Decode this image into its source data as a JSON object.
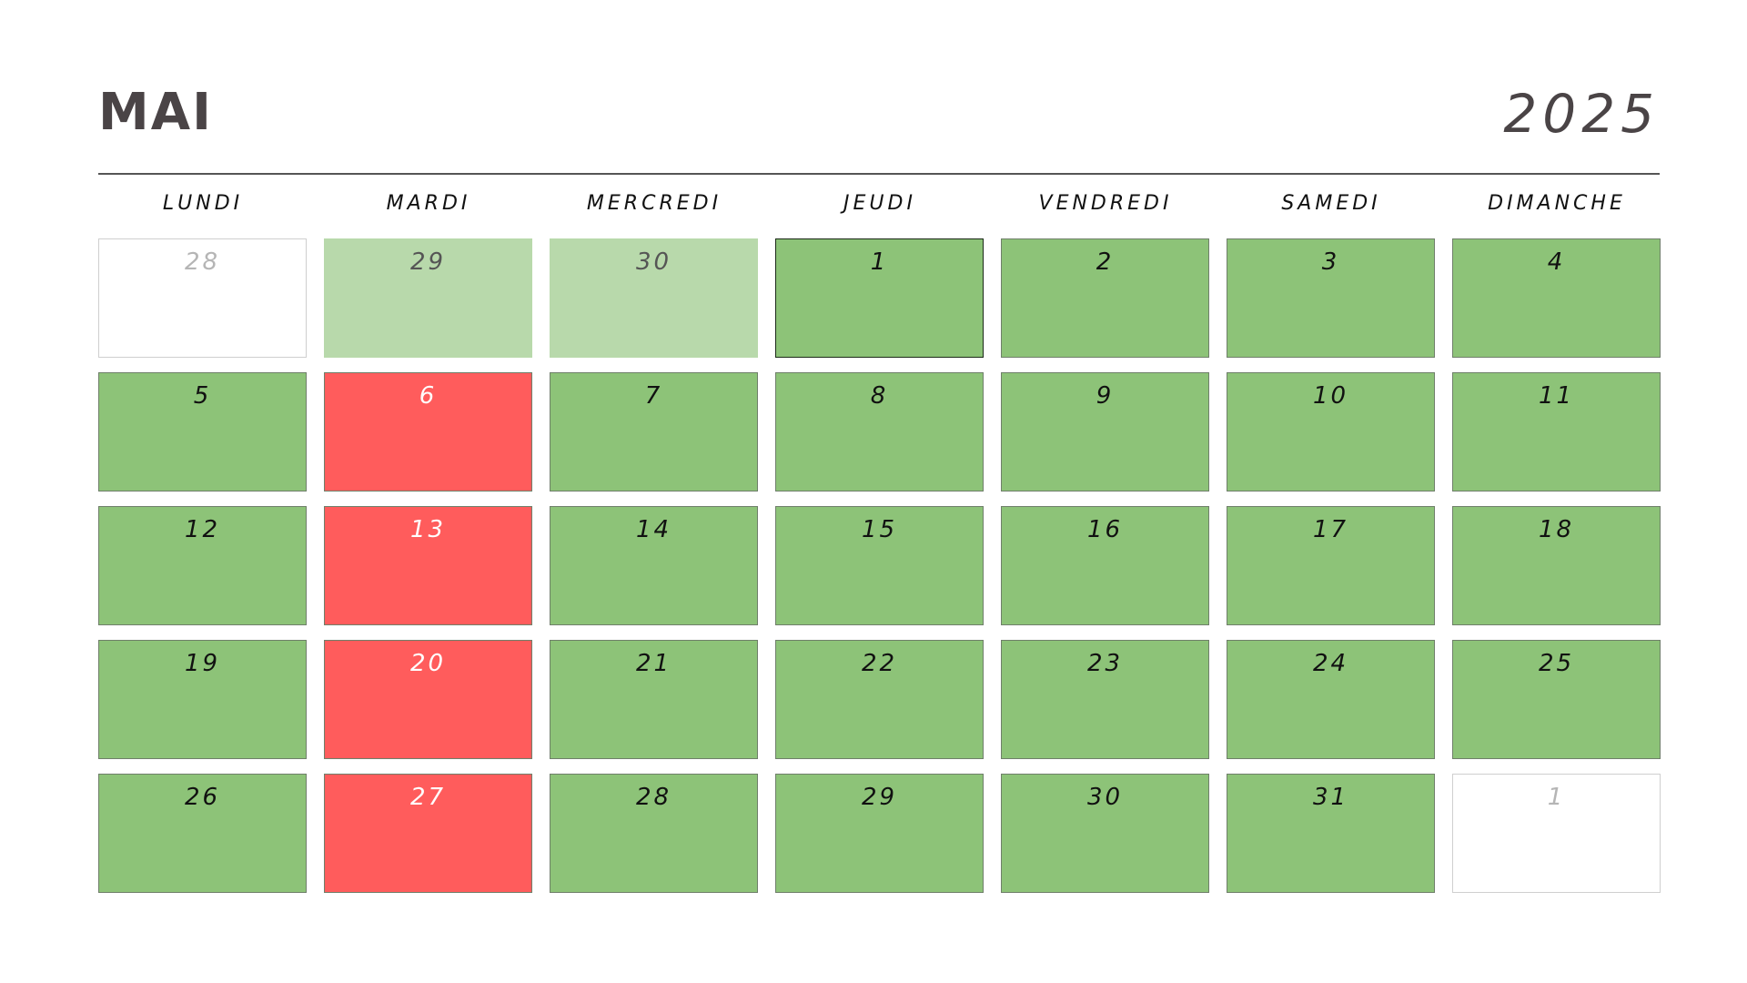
{
  "header": {
    "month": "MAI",
    "year": "2025"
  },
  "weekdays": [
    "LUNDI",
    "MARDI",
    "MERCREDI",
    "JEUDI",
    "VENDREDI",
    "SAMEDI",
    "DIMANCHE"
  ],
  "colors": {
    "green": "#8dc378",
    "light_green": "#b8d9ab",
    "red": "#ff5c5c",
    "empty": "#ffffff",
    "text_dark": "#4a4446"
  },
  "weeks": [
    [
      {
        "day": "28",
        "state": "empty"
      },
      {
        "day": "29",
        "state": "lightgreen"
      },
      {
        "day": "30",
        "state": "lightgreen"
      },
      {
        "day": "1",
        "state": "green",
        "outlined": true
      },
      {
        "day": "2",
        "state": "green"
      },
      {
        "day": "3",
        "state": "green"
      },
      {
        "day": "4",
        "state": "green"
      }
    ],
    [
      {
        "day": "5",
        "state": "green"
      },
      {
        "day": "6",
        "state": "red"
      },
      {
        "day": "7",
        "state": "green"
      },
      {
        "day": "8",
        "state": "green"
      },
      {
        "day": "9",
        "state": "green"
      },
      {
        "day": "10",
        "state": "green"
      },
      {
        "day": "11",
        "state": "green"
      }
    ],
    [
      {
        "day": "12",
        "state": "green"
      },
      {
        "day": "13",
        "state": "red"
      },
      {
        "day": "14",
        "state": "green"
      },
      {
        "day": "15",
        "state": "green"
      },
      {
        "day": "16",
        "state": "green"
      },
      {
        "day": "17",
        "state": "green"
      },
      {
        "day": "18",
        "state": "green"
      }
    ],
    [
      {
        "day": "19",
        "state": "green"
      },
      {
        "day": "20",
        "state": "red"
      },
      {
        "day": "21",
        "state": "green"
      },
      {
        "day": "22",
        "state": "green"
      },
      {
        "day": "23",
        "state": "green"
      },
      {
        "day": "24",
        "state": "green"
      },
      {
        "day": "25",
        "state": "green"
      }
    ],
    [
      {
        "day": "26",
        "state": "green"
      },
      {
        "day": "27",
        "state": "red"
      },
      {
        "day": "28",
        "state": "green"
      },
      {
        "day": "29",
        "state": "green"
      },
      {
        "day": "30",
        "state": "green"
      },
      {
        "day": "31",
        "state": "green"
      },
      {
        "day": "1",
        "state": "empty"
      }
    ]
  ]
}
